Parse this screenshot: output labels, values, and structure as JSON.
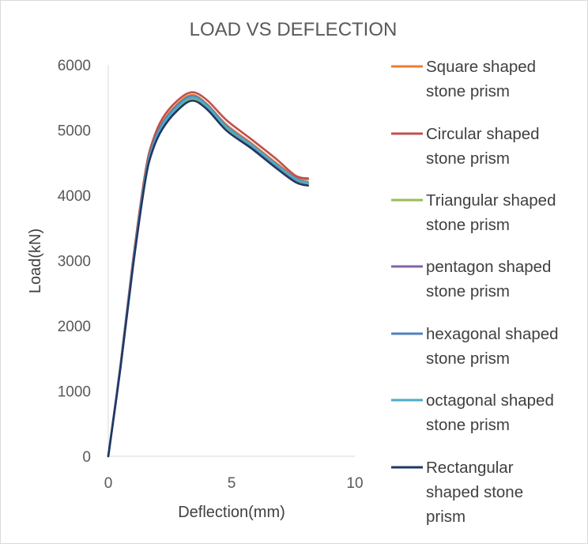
{
  "chart_data": {
    "type": "line",
    "title": "LOAD VS DEFLECTION",
    "xlabel": "Deflection(mm)",
    "ylabel": "Load(kN)",
    "xlim": [
      0,
      10
    ],
    "ylim": [
      0,
      6000
    ],
    "xticks": [
      "0",
      "5",
      "10"
    ],
    "yticks": [
      "0",
      "1000",
      "2000",
      "3000",
      "4000",
      "5000",
      "6000"
    ],
    "grid": false,
    "legend_position": "right",
    "series": [
      {
        "name": "Square shaped stone prism",
        "legend_lines": [
          "Square shaped",
          "stone prism"
        ],
        "color": "#ED7D31",
        "x": [
          0,
          0.5,
          1.0,
          1.5,
          1.8,
          2.2,
          2.8,
          3.4,
          4.0,
          4.8,
          5.8,
          6.8,
          7.6,
          8.1
        ],
        "y": [
          0,
          1400,
          2950,
          4300,
          4780,
          5120,
          5400,
          5540,
          5400,
          5080,
          4800,
          4500,
          4280,
          4240
        ]
      },
      {
        "name": "Circular shaped stone prism",
        "legend_lines": [
          "Circular shaped",
          "stone prism"
        ],
        "color": "#C0504D",
        "x": [
          0,
          0.5,
          1.0,
          1.5,
          1.8,
          2.2,
          2.8,
          3.4,
          4.0,
          4.8,
          5.8,
          6.8,
          7.6,
          8.1
        ],
        "y": [
          0,
          1420,
          3000,
          4350,
          4830,
          5180,
          5450,
          5580,
          5460,
          5150,
          4860,
          4560,
          4300,
          4260
        ]
      },
      {
        "name": "Triangular shaped stone prism",
        "legend_lines": [
          "Triangular shaped",
          "stone prism"
        ],
        "color": "#9BBB59",
        "x": [
          0,
          0.5,
          1.0,
          1.5,
          1.8,
          2.2,
          2.8,
          3.4,
          4.0,
          4.8,
          5.8,
          6.8,
          7.6,
          8.1
        ],
        "y": [
          0,
          1380,
          2920,
          4250,
          4720,
          5050,
          5330,
          5480,
          5340,
          5000,
          4740,
          4440,
          4230,
          4180
        ]
      },
      {
        "name": "pentagon shaped stone prism",
        "legend_lines": [
          "pentagon shaped",
          "stone prism"
        ],
        "color": "#8064A2",
        "x": [
          0,
          0.5,
          1.0,
          1.5,
          1.8,
          2.2,
          2.8,
          3.4,
          4.0,
          4.8,
          5.8,
          6.8,
          7.6,
          8.1
        ],
        "y": [
          0,
          1390,
          2930,
          4270,
          4740,
          5080,
          5360,
          5500,
          5370,
          5040,
          4760,
          4460,
          4240,
          4190
        ]
      },
      {
        "name": "hexagonal shaped stone prism",
        "legend_lines": [
          "hexagonal shaped",
          "stone prism"
        ],
        "color": "#4F81BD",
        "x": [
          0,
          0.5,
          1.0,
          1.5,
          1.8,
          2.2,
          2.8,
          3.4,
          4.0,
          4.8,
          5.8,
          6.8,
          7.6,
          8.1
        ],
        "y": [
          0,
          1390,
          2940,
          4280,
          4760,
          5100,
          5380,
          5520,
          5390,
          5060,
          4780,
          4480,
          4260,
          4200
        ]
      },
      {
        "name": "octagonal shaped stone prism",
        "legend_lines": [
          "octagonal shaped",
          "stone prism"
        ],
        "color": "#4BACC6",
        "x": [
          0,
          0.5,
          1.0,
          1.5,
          1.8,
          2.2,
          2.8,
          3.4,
          4.0,
          4.8,
          5.8,
          6.8,
          7.6,
          8.1
        ],
        "y": [
          0,
          1385,
          2930,
          4260,
          4730,
          5070,
          5350,
          5500,
          5370,
          5040,
          4770,
          4470,
          4250,
          4190
        ]
      },
      {
        "name": "Rectangular shaped stone prism",
        "legend_lines": [
          "Rectangular",
          "shaped stone",
          "prism"
        ],
        "color": "#1F3864",
        "x": [
          0,
          0.5,
          1.0,
          1.5,
          1.8,
          2.2,
          2.8,
          3.4,
          4.0,
          4.8,
          5.8,
          6.8,
          7.6,
          8.1
        ],
        "y": [
          0,
          1370,
          2900,
          4220,
          4690,
          5020,
          5300,
          5450,
          5320,
          4990,
          4720,
          4420,
          4200,
          4150
        ]
      }
    ]
  }
}
